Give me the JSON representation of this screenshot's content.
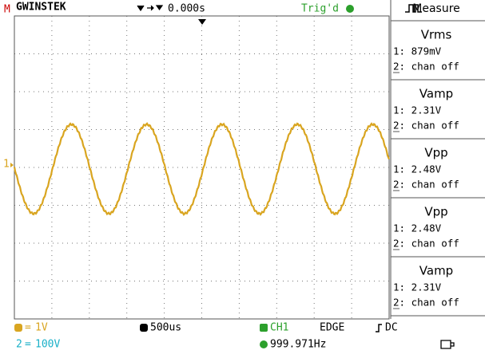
{
  "header": {
    "marker": "M",
    "brand": "GWINSTEK",
    "offset": "0.000s",
    "trigger_state": "Trig'd",
    "menu_title": "Measure"
  },
  "channel_marker": "1",
  "measurements": [
    {
      "name": "Vrms",
      "ch1": "1: 879mV",
      "ch2": "2: chan off"
    },
    {
      "name": "Vamp",
      "ch1": "1: 2.31V",
      "ch2": "2: chan off"
    },
    {
      "name": "Vpp",
      "ch1": "1: 2.48V",
      "ch2": "2: chan off"
    },
    {
      "name": "Vpp",
      "ch1": "1: 2.48V",
      "ch2": "2: chan off"
    },
    {
      "name": "Vamp",
      "ch1": "1: 2.31V",
      "ch2": "2: chan off"
    }
  ],
  "footer": {
    "ch1_scale": "1V",
    "ch2_scale": "100V",
    "timebase": "500us",
    "trigger_source": "CH1",
    "trigger_type": "EDGE",
    "coupling": "DC",
    "frequency": "999.971Hz"
  }
}
